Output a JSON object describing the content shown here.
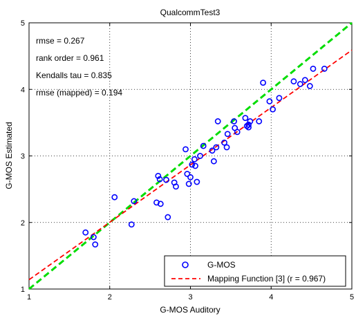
{
  "chart_data": {
    "type": "scatter",
    "title": "QualcommTest3",
    "xlabel": "G-MOS Auditory",
    "ylabel": "G-MOS Estimated",
    "xlim": [
      1,
      5
    ],
    "ylim": [
      1,
      5
    ],
    "xticks": [
      "1",
      "2",
      "3",
      "4",
      "5"
    ],
    "yticks": [
      "1",
      "2",
      "3",
      "4",
      "5"
    ],
    "grid": true,
    "annotations": [
      "rmse = 0.267",
      "rank order = 0.961",
      "Kendalls tau = 0.835",
      "rmse (mapped) = 0.194"
    ],
    "legend": {
      "placement": "bottom-right",
      "entries": [
        "G-MOS",
        "Mapping Function [3] (r = 0.967)"
      ]
    },
    "series": [
      {
        "name": "G-MOS",
        "style": "markers",
        "color": "#0000ff",
        "points": [
          [
            1.7,
            1.85
          ],
          [
            1.8,
            1.78
          ],
          [
            1.82,
            1.67
          ],
          [
            2.06,
            2.38
          ],
          [
            2.27,
            1.97
          ],
          [
            2.3,
            2.32
          ],
          [
            2.58,
            2.3
          ],
          [
            2.63,
            2.28
          ],
          [
            2.6,
            2.7
          ],
          [
            2.62,
            2.65
          ],
          [
            2.7,
            2.64
          ],
          [
            2.72,
            2.08
          ],
          [
            2.8,
            2.6
          ],
          [
            2.82,
            2.54
          ],
          [
            2.94,
            3.1
          ],
          [
            2.96,
            2.73
          ],
          [
            2.98,
            2.58
          ],
          [
            3.0,
            2.68
          ],
          [
            3.02,
            2.87
          ],
          [
            3.05,
            2.95
          ],
          [
            3.06,
            2.85
          ],
          [
            3.08,
            2.61
          ],
          [
            3.12,
            3.0
          ],
          [
            3.16,
            3.15
          ],
          [
            3.27,
            3.08
          ],
          [
            3.29,
            2.92
          ],
          [
            3.32,
            3.13
          ],
          [
            3.34,
            3.52
          ],
          [
            3.42,
            3.2
          ],
          [
            3.45,
            3.13
          ],
          [
            3.46,
            3.33
          ],
          [
            3.54,
            3.52
          ],
          [
            3.55,
            3.42
          ],
          [
            3.58,
            3.36
          ],
          [
            3.68,
            3.57
          ],
          [
            3.7,
            3.45
          ],
          [
            3.72,
            3.47
          ],
          [
            3.72,
            3.43
          ],
          [
            3.74,
            3.52
          ],
          [
            3.85,
            3.52
          ],
          [
            3.9,
            4.1
          ],
          [
            3.98,
            3.82
          ],
          [
            4.02,
            3.7
          ],
          [
            4.1,
            3.87
          ],
          [
            4.28,
            4.12
          ],
          [
            4.36,
            4.08
          ],
          [
            4.42,
            4.14
          ],
          [
            4.48,
            4.05
          ],
          [
            4.52,
            4.31
          ],
          [
            4.66,
            4.31
          ]
        ]
      },
      {
        "name": "diagonal",
        "style": "dashed-line",
        "color": "#00dd00",
        "points": [
          [
            1,
            1
          ],
          [
            5,
            5
          ]
        ]
      },
      {
        "name": "Mapping Function [3] (r = 0.967)",
        "style": "dashed-line",
        "color": "#ff0000",
        "points": [
          [
            1,
            1.14
          ],
          [
            5,
            4.59
          ]
        ]
      }
    ]
  }
}
